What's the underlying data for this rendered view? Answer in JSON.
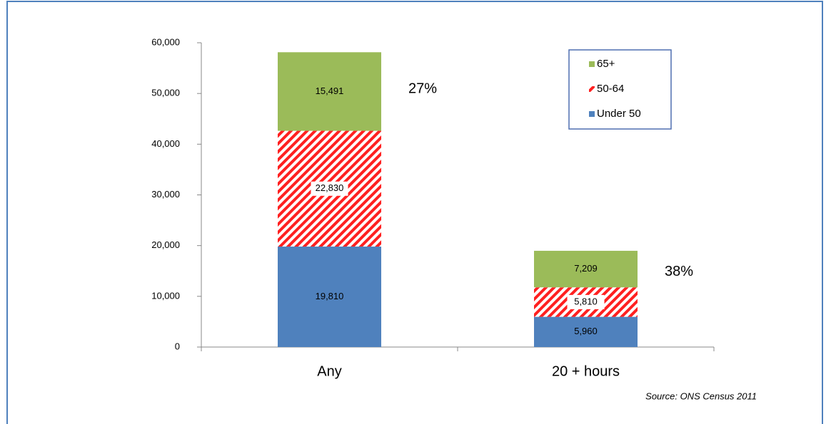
{
  "chart_data": {
    "type": "bar",
    "stacked": true,
    "categories": [
      "Any",
      "20 + hours"
    ],
    "series": [
      {
        "name": "Under 50",
        "color": "#4f81bd",
        "values": [
          19810,
          5960
        ],
        "value_labels": [
          "19,810",
          "5,960"
        ]
      },
      {
        "name": "50-64",
        "color": "#ff2020",
        "pattern": "hatch",
        "values": [
          22830,
          5810
        ],
        "value_labels": [
          "22,830",
          "5,810"
        ]
      },
      {
        "name": "65+",
        "color": "#9bbb59",
        "values": [
          15491,
          7209
        ],
        "value_labels": [
          "15,491",
          "7,209"
        ]
      }
    ],
    "annotations": [
      {
        "value": 27,
        "label": "27%"
      },
      {
        "value": 38,
        "label": "38%"
      }
    ],
    "ylim": [
      0,
      60000
    ],
    "yticks": [
      0,
      {
        "value": 10000,
        "label": "10,000"
      },
      {
        "value": 20000,
        "label": "20,000"
      },
      {
        "value": 30000,
        "label": "30,000"
      },
      {
        "value": 40000,
        "label": "40,000"
      },
      {
        "value": 50000,
        "label": "50,000"
      },
      {
        "value": 60000,
        "label": "60,000"
      }
    ],
    "legend": "upper right",
    "source": "Source:  ONS Census  2011"
  }
}
